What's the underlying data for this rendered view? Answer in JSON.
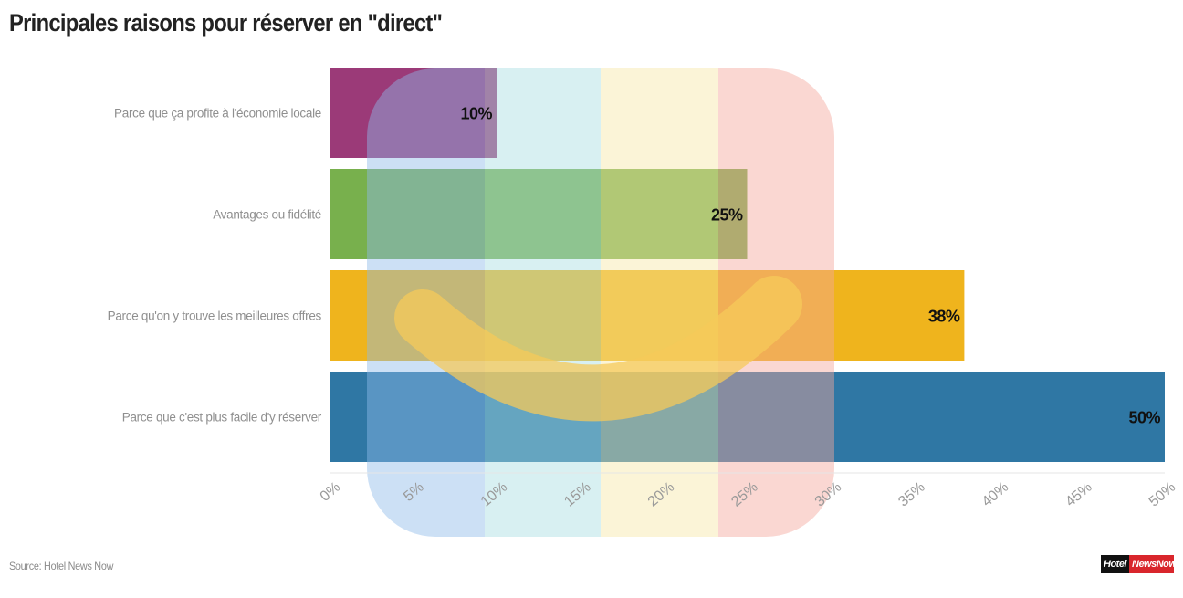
{
  "chart_data": {
    "type": "bar",
    "orientation": "horizontal",
    "title": "Principales raisons pour réserver en \"direct\"",
    "categories": [
      "Parce que ça profite à l'économie locale",
      "Avantages ou fidélité",
      "Parce qu'on y trouve les meilleures offres",
      "Parce que c'est plus facile d'y réserver"
    ],
    "values": [
      10,
      25,
      38,
      50
    ],
    "data_labels": [
      "10%",
      "25%",
      "38%",
      "50%"
    ],
    "colors": [
      "#9b3a78",
      "#78b04d",
      "#efb41d",
      "#2f77a4"
    ],
    "xlim": [
      0,
      50
    ],
    "xticks": [
      "0%",
      "5%",
      "10%",
      "15%",
      "20%",
      "25%",
      "30%",
      "35%",
      "40%",
      "45%",
      "50%"
    ],
    "grid": false,
    "legend": "none"
  },
  "footer": {
    "source": "Source: Hotel News Now",
    "logo_part1": "Hotel",
    "logo_part2": "NewsNow"
  }
}
